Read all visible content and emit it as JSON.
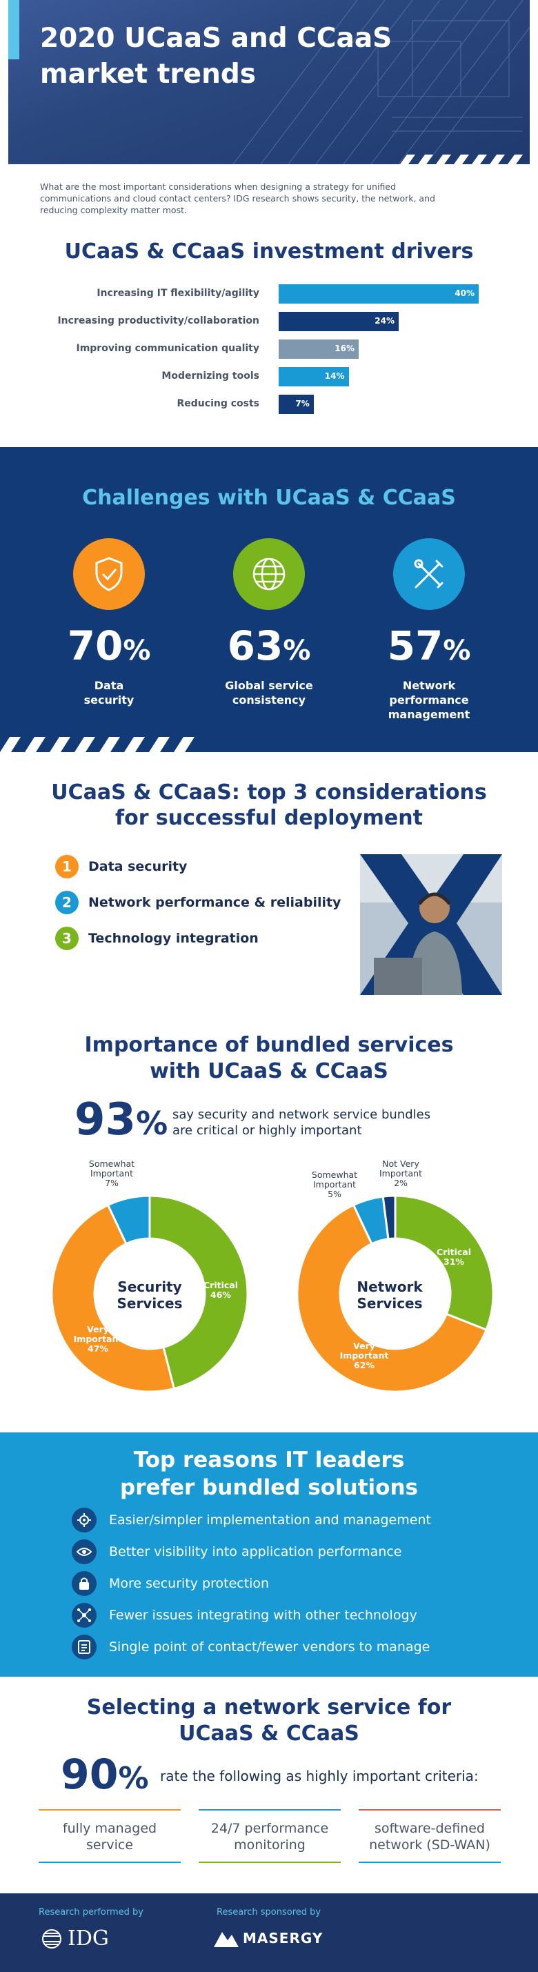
{
  "header": {
    "title_line1": "2020 UCaaS and CCaaS",
    "title_line2": "market trends",
    "intro_line1": "What are the most important considerations when designing a strategy for unified",
    "intro_line2": "communications and cloud contact centers? IDG research shows security, the network, and",
    "intro_line3": "reducing complexity matter most."
  },
  "drivers": {
    "title": "UCaaS & CCaaS investment drivers",
    "chart_data": {
      "type": "bar",
      "categories": [
        "Increasing IT flexibility/agility",
        "Increasing productivity/collaboration",
        "Improving communication quality",
        "Modernizing tools",
        "Reducing costs"
      ],
      "values": [
        40,
        24,
        16,
        14,
        7
      ],
      "value_labels": [
        "40%",
        "24%",
        "16%",
        "14%",
        "7%"
      ],
      "colors": [
        "#1a9ad5",
        "#123a76",
        "#7f98ad",
        "#1a9ad5",
        "#123a76"
      ]
    }
  },
  "challenges": {
    "title": "Challenges with UCaaS & CCaaS",
    "items": [
      {
        "number": "70",
        "unit": "%",
        "label_line1": "Data",
        "label_line2": "security",
        "label_line3": "",
        "icon": "shield-check-icon",
        "color": "#f7931e"
      },
      {
        "number": "63",
        "unit": "%",
        "label_line1": "Global service",
        "label_line2": "consistency",
        "label_line3": "",
        "icon": "globe-icon",
        "color": "#7ab51d"
      },
      {
        "number": "57",
        "unit": "%",
        "label_line1": "Network",
        "label_line2": "performance",
        "label_line3": "management",
        "icon": "tools-icon",
        "color": "#1a9ad5"
      }
    ]
  },
  "considerations": {
    "title_line1": "UCaaS & CCaaS: top 3 considerations",
    "title_line2": "for successful deployment",
    "items": [
      {
        "num": "1",
        "text": "Data security",
        "color": "#f7931e"
      },
      {
        "num": "2",
        "text": "Network performance & reliability",
        "color": "#1a9ad5"
      },
      {
        "num": "3",
        "text": "Technology integration",
        "color": "#7ab51d"
      }
    ]
  },
  "bundled": {
    "title_line1": "Importance of bundled services",
    "title_line2": "with UCaaS & CCaaS",
    "stat_number": "93",
    "stat_unit": "%",
    "stat_text_line1": "say security and network service bundles",
    "stat_text_line2": "are critical or highly important",
    "chart_data": [
      {
        "type": "pie",
        "title_line1": "Security",
        "title_line2": "Services",
        "slices": [
          {
            "name": "Critical",
            "value": 46,
            "label": "46%",
            "color": "#7ab51d"
          },
          {
            "name": "Very Important",
            "value": 47,
            "label": "47%",
            "color": "#f7931e"
          },
          {
            "name": "Somewhat Important",
            "value": 7,
            "label": "7%",
            "color": "#1a9ad5"
          }
        ]
      },
      {
        "type": "pie",
        "title_line1": "Network",
        "title_line2": "Services",
        "slices": [
          {
            "name": "Critical",
            "value": 31,
            "label": "31%",
            "color": "#7ab51d"
          },
          {
            "name": "Very Important",
            "value": 62,
            "label": "62%",
            "color": "#f7931e"
          },
          {
            "name": "Somewhat Important",
            "value": 5,
            "label": "5%",
            "color": "#1a9ad5"
          },
          {
            "name": "Not Very Important",
            "value": 2,
            "label": "2%",
            "color": "#123a76"
          }
        ]
      }
    ],
    "labels": {
      "critical": "Critical",
      "very": "Very",
      "important": "Important",
      "somewhat": "Somewhat",
      "not_very": "Not Very",
      "sec_critical_pct": "46%",
      "sec_very_pct": "47%",
      "sec_some_pct": "7%",
      "net_critical_pct": "31%",
      "net_very_pct": "62%",
      "net_some_pct": "5%",
      "net_not_pct": "2%"
    }
  },
  "reasons": {
    "title_line1": "Top reasons IT leaders",
    "title_line2": "prefer bundled solutions",
    "items": [
      {
        "text": "Easier/simpler implementation and management",
        "icon": "gear-icon"
      },
      {
        "text": "Better visibility into application performance",
        "icon": "eye-icon"
      },
      {
        "text": "More security protection",
        "icon": "lock-icon"
      },
      {
        "text": "Fewer issues integrating with other technology",
        "icon": "network-icon"
      },
      {
        "text": "Single point of contact/fewer vendors to manage",
        "icon": "list-icon"
      }
    ]
  },
  "selecting": {
    "title_line1": "Selecting a network service for",
    "title_line2": "UCaaS & CCaaS",
    "stat_number": "90",
    "stat_unit": "%",
    "stat_text": "rate the following as highly important criteria:",
    "criteria": [
      {
        "line1": "fully managed",
        "line2": "service",
        "color": "#f7931e",
        "bottom_color": "#1a9ad5"
      },
      {
        "line1": "24/7 performance",
        "line2": "monitoring",
        "color": "#1a9ad5",
        "bottom_color": "#7ab51d"
      },
      {
        "line1": "software-defined",
        "line2": "network (SD-WAN)",
        "color": "#e25a50",
        "bottom_color": "#1a9ad5"
      }
    ]
  },
  "footer": {
    "performed_label": "Research performed by",
    "performed_logo": "IDG",
    "sponsored_label": "Research sponsored by",
    "sponsored_logo": "MASERGY"
  }
}
